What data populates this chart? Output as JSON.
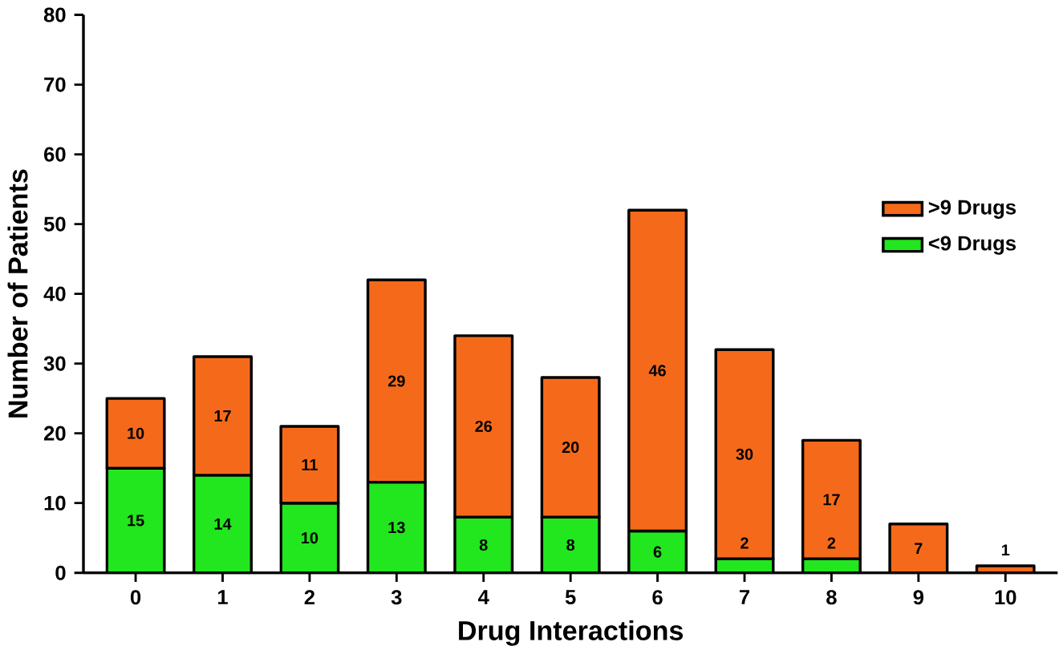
{
  "chart_data": {
    "type": "bar",
    "stacked": true,
    "xlabel": "Drug Interactions",
    "ylabel": "Number of Patients",
    "categories": [
      "0",
      "1",
      "2",
      "3",
      "4",
      "5",
      "6",
      "7",
      "8",
      "9",
      "10"
    ],
    "series": [
      {
        "name": "<9 Drugs",
        "color": "#22e61e",
        "values": [
          15,
          14,
          10,
          13,
          8,
          8,
          6,
          2,
          2,
          null,
          null
        ]
      },
      {
        "name": ">9 Drugs",
        "color": "#f56a1a",
        "values": [
          10,
          17,
          11,
          29,
          26,
          20,
          46,
          30,
          17,
          7,
          1
        ]
      }
    ],
    "ylim": [
      0,
      80
    ],
    "yticks": [
      0,
      10,
      20,
      30,
      40,
      50,
      60,
      70,
      80
    ],
    "data_labels": true,
    "legend": "right",
    "grid": false
  }
}
